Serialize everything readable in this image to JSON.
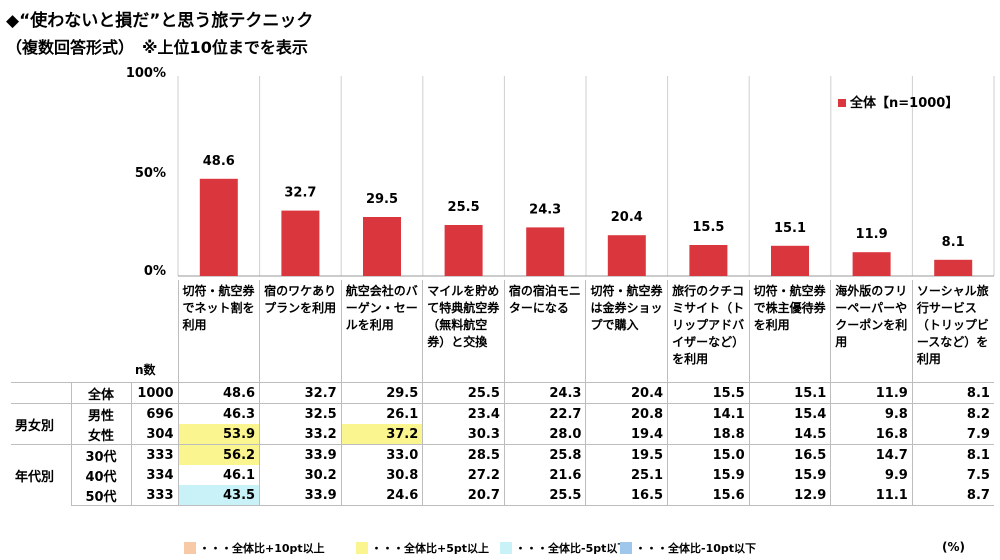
{
  "title": "◆“使わないと損だ”と思う旅テクニック",
  "subtitle": "（複数回答形式）　※上位10位までを表示",
  "chart_data": {
    "type": "bar",
    "categories": [
      "切符・航空券でネット割を利用",
      "宿のワケありプランを利用",
      "航空会社のバーゲン・セールを利用",
      "マイルを貯めて特典航空券（無料航空券）と交換",
      "宿の宿泊モニターになる",
      "切符・航空券は金券ショップで購入",
      "旅行のクチコミサイト（トリップアドバイザーなど）を利用",
      "切符・航空券で株主優待券を利用",
      "海外版のフリーペーパーやクーポンを利用",
      "ソーシャル旅行サービス（トリップビースなど）を利用"
    ],
    "series": [
      {
        "name": "全体【n=1000】",
        "values": [
          48.6,
          32.7,
          29.5,
          25.5,
          24.3,
          20.4,
          15.5,
          15.1,
          11.9,
          8.1
        ]
      }
    ],
    "ylim": [
      0,
      100
    ],
    "yticks": [
      "0%",
      "50%",
      "100%"
    ],
    "bar_color": "#d9363e",
    "grid": false,
    "legend_position": "top-right"
  },
  "table": {
    "n_header": "n数",
    "rows": [
      {
        "group": "",
        "label": "全体",
        "n": "1000",
        "values": [
          "48.6",
          "32.7",
          "29.5",
          "25.5",
          "24.3",
          "20.4",
          "15.5",
          "15.1",
          "11.9",
          "8.1"
        ],
        "hl": [
          "",
          "",
          "",
          "",
          "",
          "",
          "",
          "",
          "",
          ""
        ]
      },
      {
        "group": "男女別",
        "label": "男性",
        "n": "696",
        "values": [
          "46.3",
          "32.5",
          "26.1",
          "23.4",
          "22.7",
          "20.8",
          "14.1",
          "15.4",
          "9.8",
          "8.2"
        ],
        "hl": [
          "",
          "",
          "",
          "",
          "",
          "",
          "",
          "",
          "",
          ""
        ]
      },
      {
        "group": "",
        "label": "女性",
        "n": "304",
        "values": [
          "53.9",
          "33.2",
          "37.2",
          "30.3",
          "28.0",
          "19.4",
          "18.8",
          "14.5",
          "16.8",
          "7.9"
        ],
        "hl": [
          "+5",
          "",
          "+5",
          "",
          "",
          "",
          "",
          "",
          "",
          ""
        ]
      },
      {
        "group": "年代別",
        "label": "30代",
        "n": "333",
        "values": [
          "56.2",
          "33.9",
          "33.0",
          "28.5",
          "25.8",
          "19.5",
          "15.0",
          "16.5",
          "14.7",
          "8.1"
        ],
        "hl": [
          "+5",
          "",
          "",
          "",
          "",
          "",
          "",
          "",
          "",
          ""
        ]
      },
      {
        "group": "",
        "label": "40代",
        "n": "334",
        "values": [
          "46.1",
          "30.2",
          "30.8",
          "27.2",
          "21.6",
          "25.1",
          "15.9",
          "15.9",
          "9.9",
          "7.5"
        ],
        "hl": [
          "",
          "",
          "",
          "",
          "",
          "",
          "",
          "",
          "",
          ""
        ]
      },
      {
        "group": "",
        "label": "50代",
        "n": "333",
        "values": [
          "43.5",
          "33.9",
          "24.6",
          "20.7",
          "25.5",
          "16.5",
          "15.6",
          "12.9",
          "11.1",
          "8.7"
        ],
        "hl": [
          "-5",
          "",
          "",
          "",
          "",
          "",
          "",
          "",
          "",
          ""
        ]
      }
    ]
  },
  "footnote": {
    "items": [
      {
        "label": "・・・全体比+10pt以上",
        "color": "#f8c9a6"
      },
      {
        "label": "・・・全体比+5pt以上",
        "color": "#fbf590"
      },
      {
        "label": "・・・全体比-5pt以下",
        "color": "#c8f2f8"
      },
      {
        "label": "・・・全体比-10pt以下",
        "color": "#9fc7ec"
      }
    ],
    "unit": "(%)"
  },
  "colors": {
    "plus10": "#f8c9a6",
    "plus5": "#fbf590",
    "minus5": "#c8f2f8",
    "minus10": "#9fc7ec",
    "bar": "#d9363e",
    "grid": "#cfcfcf"
  }
}
